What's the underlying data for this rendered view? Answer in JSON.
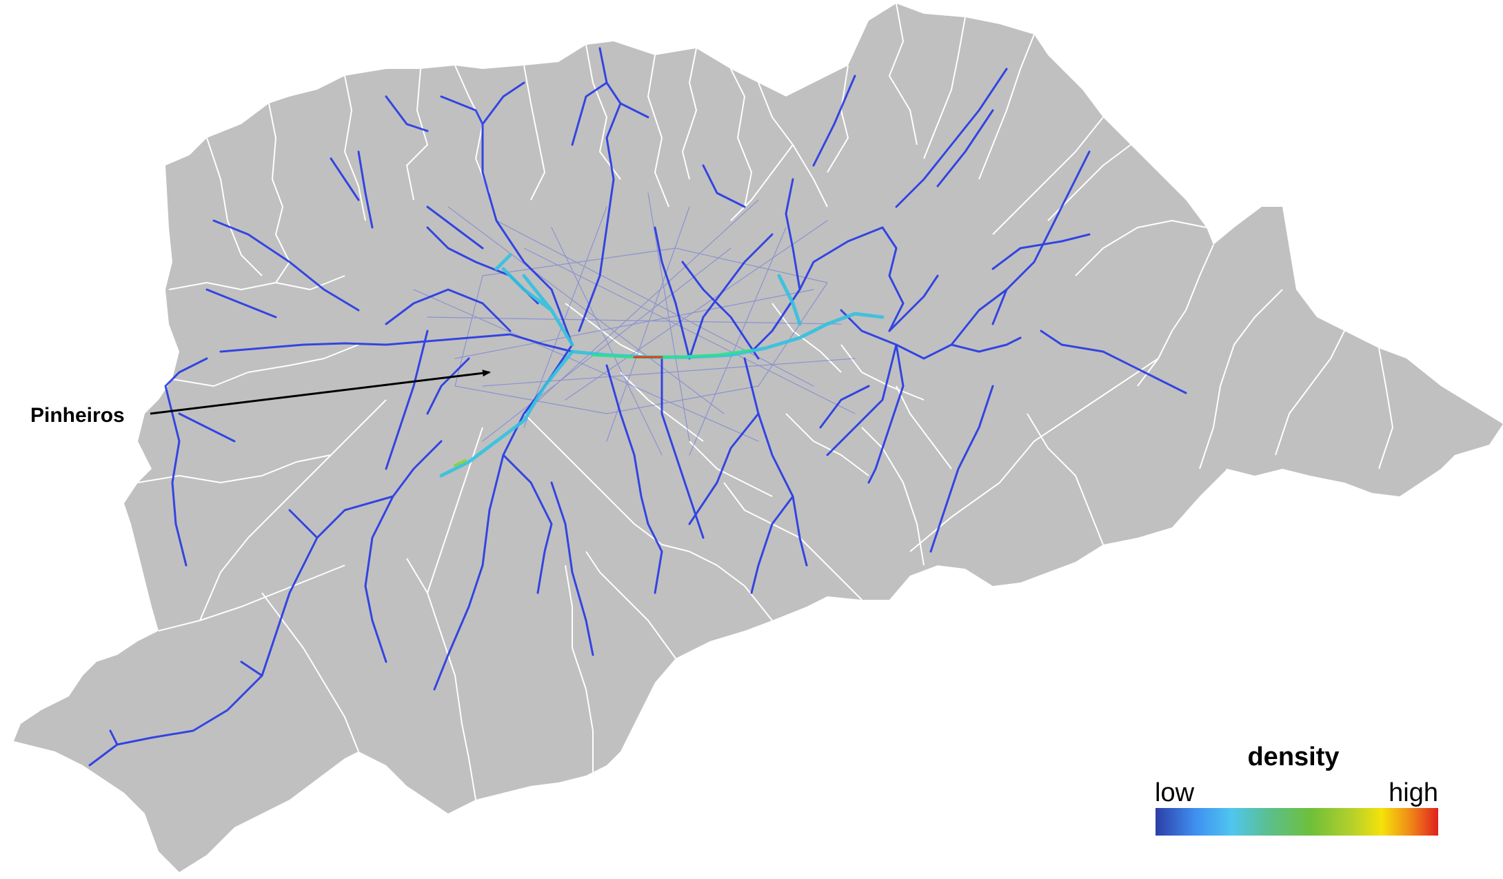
{
  "map": {
    "callout": {
      "label": "Pinheiros"
    },
    "legend": {
      "title": "density",
      "low_label": "low",
      "high_label": "high",
      "gradient_colors": [
        "#2c3fa6",
        "#3f8ff0",
        "#4fc6ef",
        "#5bbf8e",
        "#6fbf3a",
        "#b7d12a",
        "#f5e20a",
        "#f08a18",
        "#e0201e"
      ]
    },
    "colors": {
      "land": "#c0c0c0",
      "district_borders": "#ffffff",
      "flow_low": "#1a2fe8",
      "flow_medium": "#33c2e0",
      "flow_high": "#e23a1a"
    }
  }
}
